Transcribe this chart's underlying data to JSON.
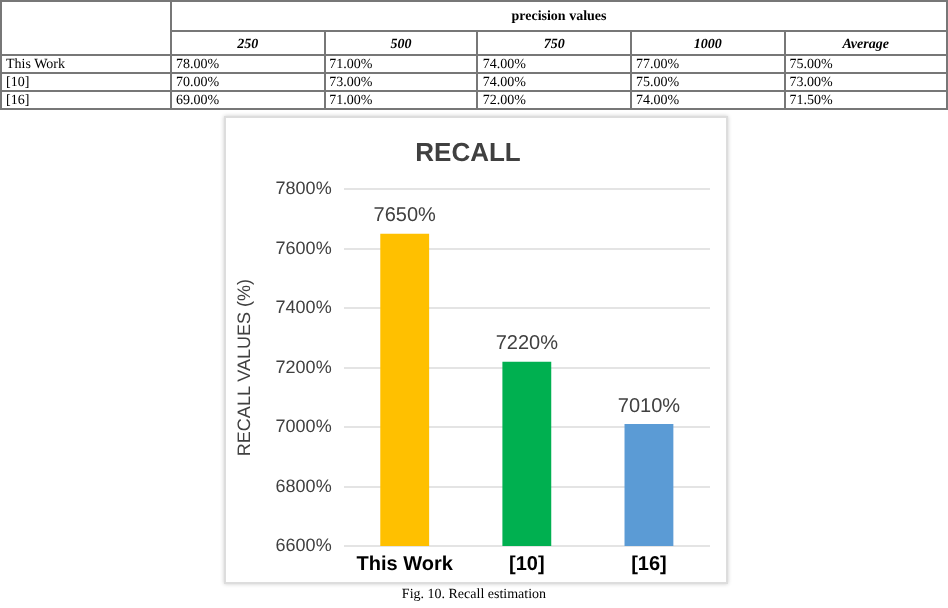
{
  "chart_data": [
    {
      "type": "heatmap",
      "title": "precision values",
      "categories": [
        "250",
        "500",
        "750",
        "1000",
        "Average"
      ],
      "y_categories": [
        "This Work",
        "[10]",
        "[16]"
      ],
      "cells": [
        [
          78,
          71,
          74,
          77,
          75
        ],
        [
          70,
          73,
          74,
          75,
          73
        ],
        [
          69,
          71,
          72,
          74,
          71.5
        ]
      ],
      "cell_labels": [
        [
          "78.00%",
          "71.00%",
          "74.00%",
          "77.00%",
          "75.00%"
        ],
        [
          "70.00%",
          "73.00%",
          "74.00%",
          "75.00%",
          "73.00%"
        ],
        [
          "69.00%",
          "71.00%",
          "72.00%",
          "74.00%",
          "71.50%"
        ]
      ]
    },
    {
      "type": "bar",
      "title": "RECALL",
      "ylabel": "RECALL VALUES (%)",
      "categories": [
        "This Work",
        "[10]",
        "[16]"
      ],
      "values": [
        7650,
        7220,
        7010
      ],
      "colors": [
        "#ffc000",
        "#00b050",
        "#5b9bd5"
      ],
      "value_labels": [
        "7650%",
        "7220%",
        "7010%"
      ],
      "ylim": [
        6600,
        7800
      ],
      "yticks": [
        {
          "value": 6600,
          "label": "6600%"
        },
        {
          "value": 6800,
          "label": "6800%"
        },
        {
          "value": 7000,
          "label": "7000%"
        },
        {
          "value": 7200,
          "label": "7200%"
        },
        {
          "value": 7400,
          "label": "7400%"
        },
        {
          "value": 7600,
          "label": "7600%"
        },
        {
          "value": 7800,
          "label": "7800%"
        }
      ],
      "grid": "y",
      "legend": false,
      "annotations": [
        "Fig. 10. Recall estimation"
      ]
    }
  ]
}
